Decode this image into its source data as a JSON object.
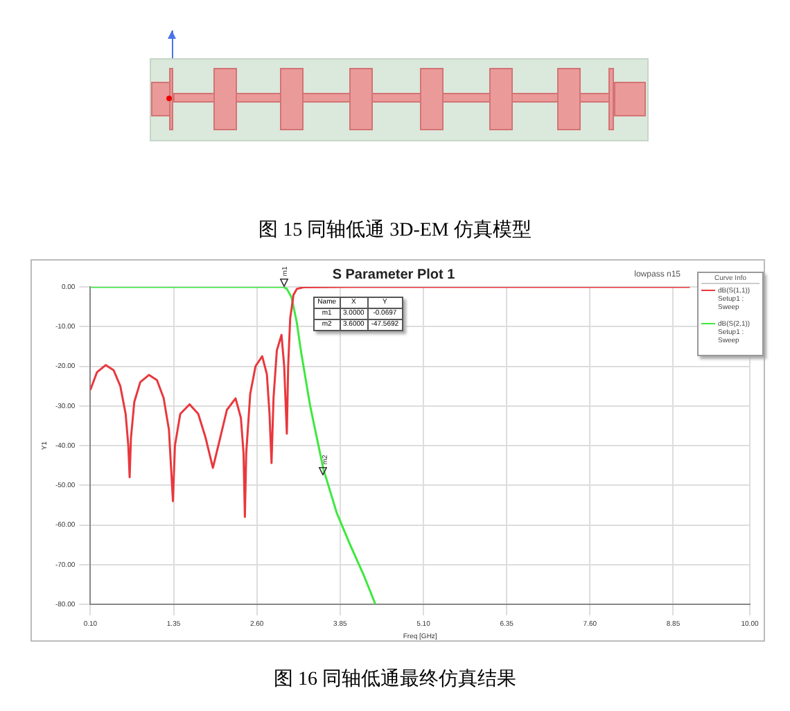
{
  "chart_data": {
    "type": "line",
    "title": "S Parameter Plot 1",
    "xlabel": "Freq [GHz]",
    "ylabel": "Y1",
    "legend_title": "Curve Info",
    "xlim": [
      0.1,
      10
    ],
    "xticks": [
      {
        "value": 0.1,
        "label": "0.10"
      },
      {
        "value": 1.35,
        "label": "1.35"
      },
      {
        "value": 2.6,
        "label": "2.60"
      },
      {
        "value": 3.85,
        "label": "3.85"
      },
      {
        "value": 5.1,
        "label": "5.10"
      },
      {
        "value": 6.35,
        "label": "6.35"
      },
      {
        "value": 7.6,
        "label": "7.60"
      },
      {
        "value": 8.85,
        "label": "8.85"
      },
      {
        "value": 10,
        "label": "10.00"
      }
    ],
    "ylim": [
      -80,
      0
    ],
    "yticks": [
      {
        "value": -80,
        "label": "-80.00"
      },
      {
        "value": -70,
        "label": "-70.00"
      },
      {
        "value": -60,
        "label": "-60.00"
      },
      {
        "value": -50,
        "label": "-50.00"
      },
      {
        "value": -40,
        "label": "-40.00"
      },
      {
        "value": -30,
        "label": "-30.00"
      },
      {
        "value": -20,
        "label": "-20.00"
      },
      {
        "value": -10,
        "label": "-10.00"
      },
      {
        "value": 0,
        "label": "0.00"
      }
    ],
    "grid": true,
    "legend": "top right",
    "marker": "none",
    "line_style": "solid",
    "series": [
      {
        "name": "dB(S(1,1))\nSetup1 : Sweep",
        "color": "#e8383d",
        "x": [
          0.1,
          0.2,
          0.33,
          0.45,
          0.55,
          0.63,
          0.67,
          0.69,
          0.71,
          0.76,
          0.85,
          0.98,
          1.1,
          1.2,
          1.28,
          1.34,
          1.37,
          1.45,
          1.59,
          1.72,
          1.83,
          1.94,
          2.05,
          2.15,
          2.28,
          2.36,
          2.4,
          2.42,
          2.44,
          2.5,
          2.58,
          2.68,
          2.75,
          2.79,
          2.82,
          2.85,
          2.9,
          2.97,
          3.01,
          3.05,
          3.07,
          3.1,
          3.15,
          3.2,
          3.3,
          4,
          9.1
        ],
        "values": [
          -26,
          -21.5,
          -19.7,
          -21,
          -25,
          -32,
          -40,
          -48,
          -38,
          -29,
          -24,
          -22.2,
          -23.5,
          -28,
          -36,
          -54,
          -40,
          -32,
          -29.6,
          -32,
          -38,
          -45.6,
          -38,
          -31,
          -28.1,
          -33,
          -42,
          -58,
          -42,
          -27,
          -20,
          -17.5,
          -22,
          -32,
          -44.4,
          -28,
          -16,
          -12.1,
          -20,
          -37,
          -20,
          -8,
          -2,
          -0.5,
          -0.1,
          0,
          0
        ]
      },
      {
        "name": "dB(S(2,1))\nSetup1 : Sweep",
        "color": "#3ee83e",
        "x": [
          0.1,
          2.9,
          3.0,
          3.05,
          3.12,
          3.2,
          3.26,
          3.4,
          3.6,
          3.8,
          4.0,
          4.2,
          4.38
        ],
        "values": [
          0,
          0,
          0,
          -0.5,
          -2.6,
          -9,
          -16,
          -30,
          -46,
          -57,
          -65,
          -72.5,
          -80
        ]
      }
    ],
    "annotations": [
      "图 15 同轴低通 3D-EM 仿真模型",
      "lowpass n15",
      "Name",
      "X",
      "Y",
      "m1",
      "3.0000",
      "-0.0697",
      "m2",
      "3.6000",
      "-47.5692",
      {
        "text": "m1",
        "x": 3.0,
        "y": -0.0697
      },
      {
        "text": "m2",
        "x": 3.6,
        "y": -47.5692
      },
      "图 16 同轴低通最终仿真结果"
    ]
  }
}
